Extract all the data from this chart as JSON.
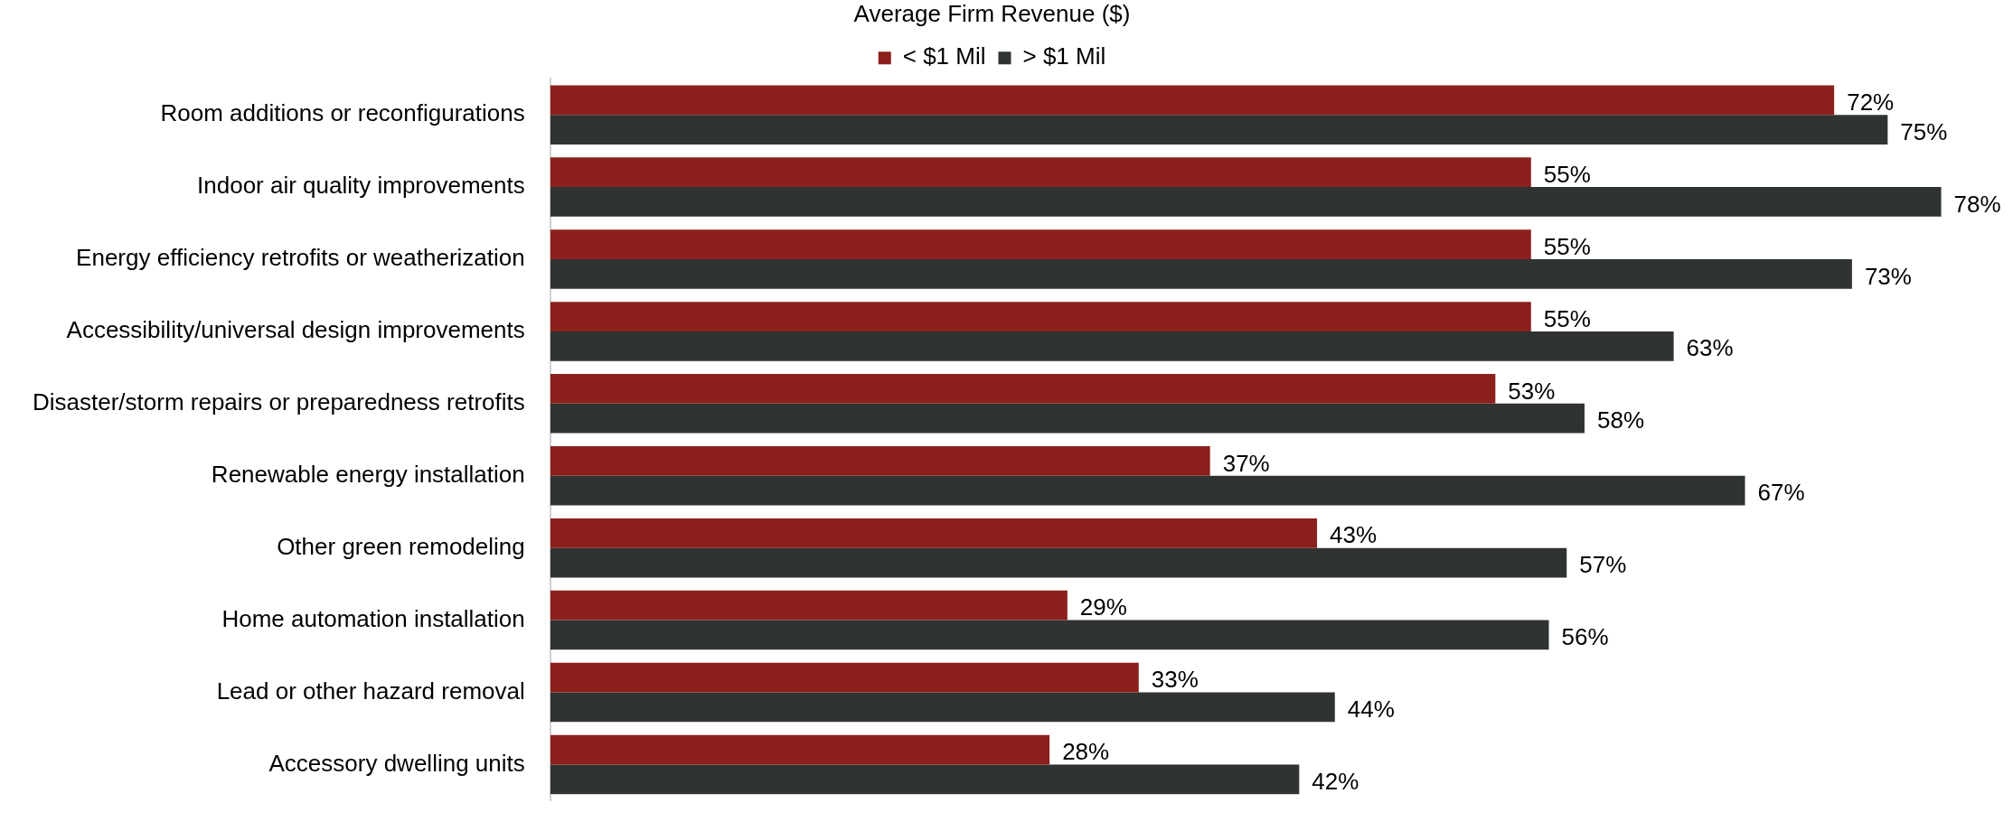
{
  "chart_data": {
    "type": "bar",
    "orientation": "horizontal",
    "legend_title": "Average Firm Revenue ($)",
    "legend": "top",
    "categories": [
      "Room additions or reconfigurations",
      "Indoor air quality improvements",
      "Energy efficiency retrofits or weatherization",
      "Accessibility/universal design improvements",
      "Disaster/storm repairs or preparedness retrofits",
      "Renewable energy installation",
      "Other green remodeling",
      "Home automation installation",
      "Lead or other hazard removal",
      "Accessory dwelling units"
    ],
    "series": [
      {
        "name": "< $1 Mil",
        "color": "#8b201c",
        "values": [
          72,
          55,
          55,
          55,
          53,
          37,
          43,
          29,
          33,
          28
        ],
        "value_labels": [
          "72%",
          "55%",
          "55%",
          "55%",
          "53%",
          "37%",
          "43%",
          "29%",
          "33%",
          "28%"
        ]
      },
      {
        "name": "> $1 Mil",
        "color": "#2f3432",
        "values": [
          75,
          78,
          73,
          63,
          58,
          67,
          57,
          56,
          44,
          42
        ],
        "value_labels": [
          "75%",
          "78%",
          "73%",
          "63%",
          "58%",
          "67%",
          "57%",
          "56%",
          "44%",
          "42%"
        ]
      }
    ],
    "tick_labels": "y",
    "grid": false
  }
}
